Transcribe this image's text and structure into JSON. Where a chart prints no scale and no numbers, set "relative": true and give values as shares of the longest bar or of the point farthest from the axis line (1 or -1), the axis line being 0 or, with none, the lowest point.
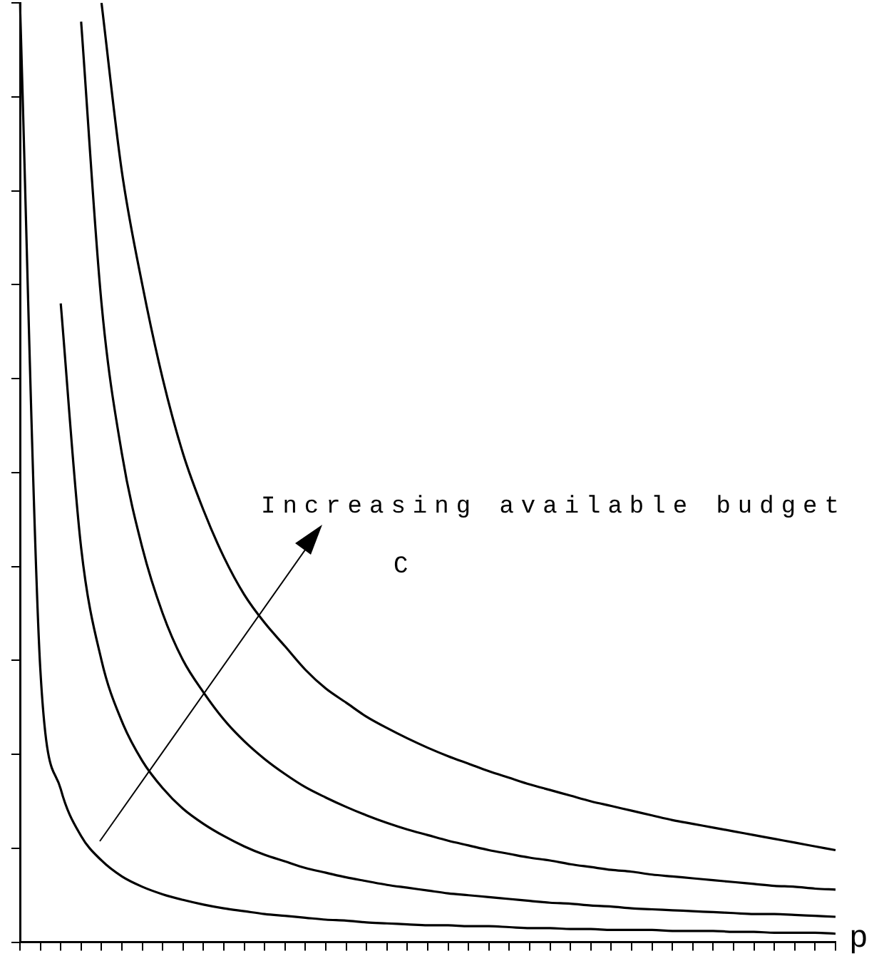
{
  "chart_data": {
    "type": "line",
    "relative": true,
    "xlabel": "p",
    "annotations": [
      "Increasing available budget",
      "C"
    ],
    "grid": false,
    "legend": false,
    "marker": "none",
    "line_style": "solid",
    "categories": [
      null,
      null,
      null,
      null,
      null,
      null,
      null,
      null,
      null,
      null,
      null,
      null,
      null,
      null,
      null,
      null,
      null,
      null,
      null,
      null,
      null,
      null,
      null,
      null,
      null,
      null,
      null,
      null,
      null,
      null,
      null,
      null,
      null,
      null,
      null,
      null,
      null,
      null,
      null,
      null,
      null
    ],
    "series": [
      {
        "color": "#000000",
        "values": [
          1,
          0.29,
          0.163,
          0.113,
          0.087,
          0.07,
          0.059,
          0.051,
          0.045,
          0.04,
          0.036,
          0.033,
          0.03,
          0.028,
          0.026,
          0.024,
          0.023,
          0.021,
          0.02,
          0.019,
          0.018,
          0.018,
          0.017,
          0.017,
          0.016,
          0.015,
          0.015,
          0.014,
          0.014,
          0.013,
          0.013,
          0.013,
          0.012,
          0.012,
          0.012,
          0.011,
          0.011,
          0.01,
          0.01,
          0.01,
          0.009
        ]
      },
      {
        "color": "#000000",
        "values": [
          null,
          null,
          0.68,
          0.42,
          0.3,
          0.235,
          0.193,
          0.164,
          0.142,
          0.126,
          0.113,
          0.102,
          0.093,
          0.086,
          0.079,
          0.074,
          0.069,
          0.065,
          0.061,
          0.058,
          0.055,
          0.052,
          0.05,
          0.048,
          0.046,
          0.044,
          0.042,
          0.041,
          0.039,
          0.038,
          0.036,
          0.035,
          0.034,
          0.033,
          0.032,
          0.031,
          0.03,
          0.03,
          0.029,
          0.028,
          0.027
        ]
      },
      {
        "color": "#000000",
        "values": [
          null,
          null,
          null,
          0.98,
          0.68,
          0.52,
          0.42,
          0.35,
          0.3,
          0.266,
          0.237,
          0.214,
          0.195,
          0.179,
          0.165,
          0.154,
          0.144,
          0.135,
          0.127,
          0.12,
          0.114,
          0.108,
          0.103,
          0.098,
          0.094,
          0.09,
          0.087,
          0.083,
          0.08,
          0.077,
          0.075,
          0.072,
          0.07,
          0.068,
          0.066,
          0.064,
          0.062,
          0.06,
          0.059,
          0.057,
          0.056
        ]
      },
      {
        "color": "#000000",
        "values": [
          null,
          null,
          null,
          null,
          1,
          0.82,
          0.7,
          0.6,
          0.52,
          0.46,
          0.41,
          0.37,
          0.34,
          0.315,
          0.29,
          0.27,
          0.255,
          0.24,
          0.228,
          0.217,
          0.207,
          0.198,
          0.19,
          0.182,
          0.175,
          0.168,
          0.162,
          0.156,
          0.15,
          0.145,
          0.14,
          0.135,
          0.13,
          0.126,
          0.122,
          0.118,
          0.114,
          0.11,
          0.106,
          0.102,
          0.098
        ]
      }
    ]
  }
}
